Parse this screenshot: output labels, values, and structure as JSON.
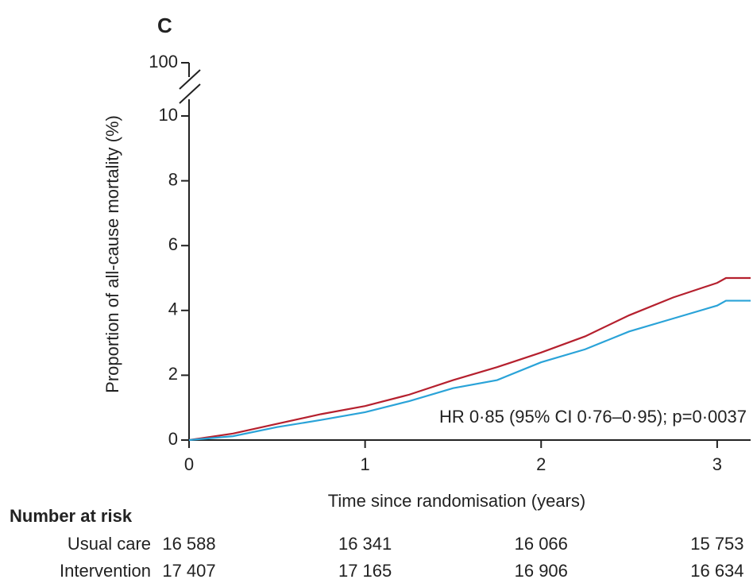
{
  "chart_data": {
    "type": "line",
    "panel_label": "C",
    "ylabel": "Proportion of all-cause mortality (%)",
    "xlabel": "Time since randomisation (years)",
    "annotation": "HR 0·85 (95% CI 0·76–0·95); p=0·0037",
    "xlim": [
      0,
      3.19
    ],
    "ylim": [
      0,
      10
    ],
    "xticks": [
      0,
      1,
      2,
      3
    ],
    "yticks": [
      0,
      2,
      4,
      6,
      8,
      10
    ],
    "ybreak_tick": 100,
    "x": [
      0,
      0.25,
      0.5,
      0.75,
      1,
      1.25,
      1.5,
      1.75,
      2,
      2.25,
      2.5,
      2.75,
      3,
      3.05,
      3.19
    ],
    "series": [
      {
        "name": "Usual care",
        "color": "#b5202e",
        "values": [
          0,
          0.2,
          0.5,
          0.8,
          1.05,
          1.4,
          1.85,
          2.25,
          2.7,
          3.2,
          3.85,
          4.4,
          4.85,
          5.0,
          5.0
        ]
      },
      {
        "name": "Intervention",
        "color": "#2aa3d8",
        "values": [
          0,
          0.12,
          0.4,
          0.62,
          0.86,
          1.2,
          1.6,
          1.85,
          2.4,
          2.8,
          3.35,
          3.75,
          4.15,
          4.3,
          4.3
        ]
      }
    ],
    "risk_table": {
      "title": "Number at risk",
      "rows": [
        {
          "name": "Usual care",
          "counts": [
            "16 588",
            "16 341",
            "16 066",
            "15 753"
          ]
        },
        {
          "name": "Intervention",
          "counts": [
            "17 407",
            "17 165",
            "16 906",
            "16 634"
          ]
        }
      ]
    }
  }
}
